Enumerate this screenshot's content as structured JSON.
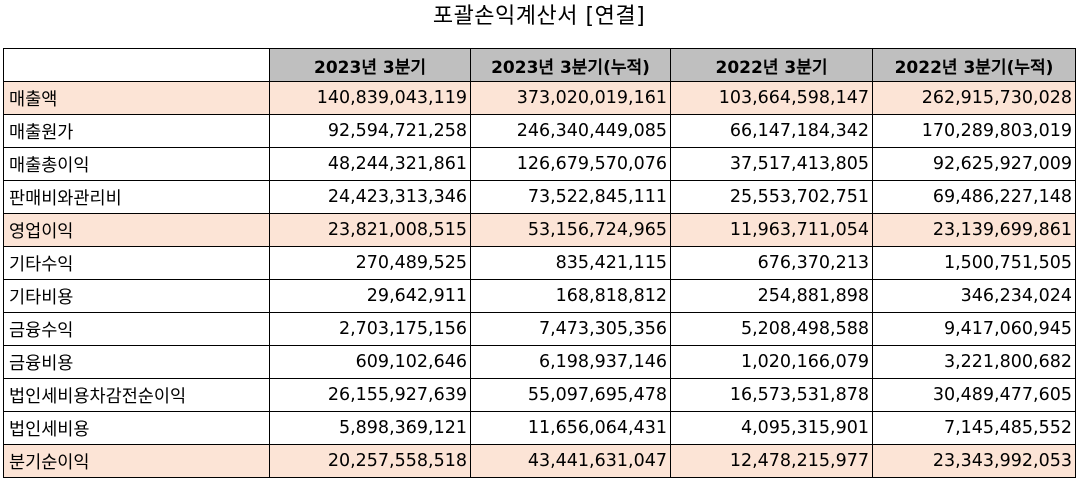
{
  "title": "포괄손익계산서 [연결]",
  "columns": [
    "2023년 3분기",
    "2023년 3분기(누적)",
    "2022년 3분기",
    "2022년 3분기(누적)"
  ],
  "rows": [
    {
      "label": "매출액",
      "highlight": true,
      "values": [
        "140,839,043,119",
        "373,020,019,161",
        "103,664,598,147",
        "262,915,730,028"
      ]
    },
    {
      "label": "매출원가",
      "highlight": false,
      "values": [
        "92,594,721,258",
        "246,340,449,085",
        "66,147,184,342",
        "170,289,803,019"
      ]
    },
    {
      "label": "매출총이익",
      "highlight": false,
      "values": [
        "48,244,321,861",
        "126,679,570,076",
        "37,517,413,805",
        "92,625,927,009"
      ]
    },
    {
      "label": "판매비와관리비",
      "highlight": false,
      "values": [
        "24,423,313,346",
        "73,522,845,111",
        "25,553,702,751",
        "69,486,227,148"
      ]
    },
    {
      "label": "영업이익",
      "highlight": true,
      "values": [
        "23,821,008,515",
        "53,156,724,965",
        "11,963,711,054",
        "23,139,699,861"
      ]
    },
    {
      "label": "기타수익",
      "highlight": false,
      "values": [
        "270,489,525",
        "835,421,115",
        "676,370,213",
        "1,500,751,505"
      ]
    },
    {
      "label": "기타비용",
      "highlight": false,
      "values": [
        "29,642,911",
        "168,818,812",
        "254,881,898",
        "346,234,024"
      ]
    },
    {
      "label": "금융수익",
      "highlight": false,
      "values": [
        "2,703,175,156",
        "7,473,305,356",
        "5,208,498,588",
        "9,417,060,945"
      ]
    },
    {
      "label": "금융비용",
      "highlight": false,
      "values": [
        "609,102,646",
        "6,198,937,146",
        "1,020,166,079",
        "3,221,800,682"
      ]
    },
    {
      "label": "법인세비용차감전순이익",
      "highlight": false,
      "values": [
        "26,155,927,639",
        "55,097,695,478",
        "16,573,531,878",
        "30,489,477,605"
      ]
    },
    {
      "label": "법인세비용",
      "highlight": false,
      "values": [
        "5,898,369,121",
        "11,656,064,431",
        "4,095,315,901",
        "7,145,485,552"
      ]
    },
    {
      "label": "분기순이익",
      "highlight": true,
      "values": [
        "20,257,558,518",
        "43,441,631,047",
        "12,478,215,977",
        "23,343,992,053"
      ]
    }
  ],
  "colors": {
    "header_bg": "#bfbfbf",
    "highlight_bg": "#fce4d6",
    "border": "#000000"
  }
}
